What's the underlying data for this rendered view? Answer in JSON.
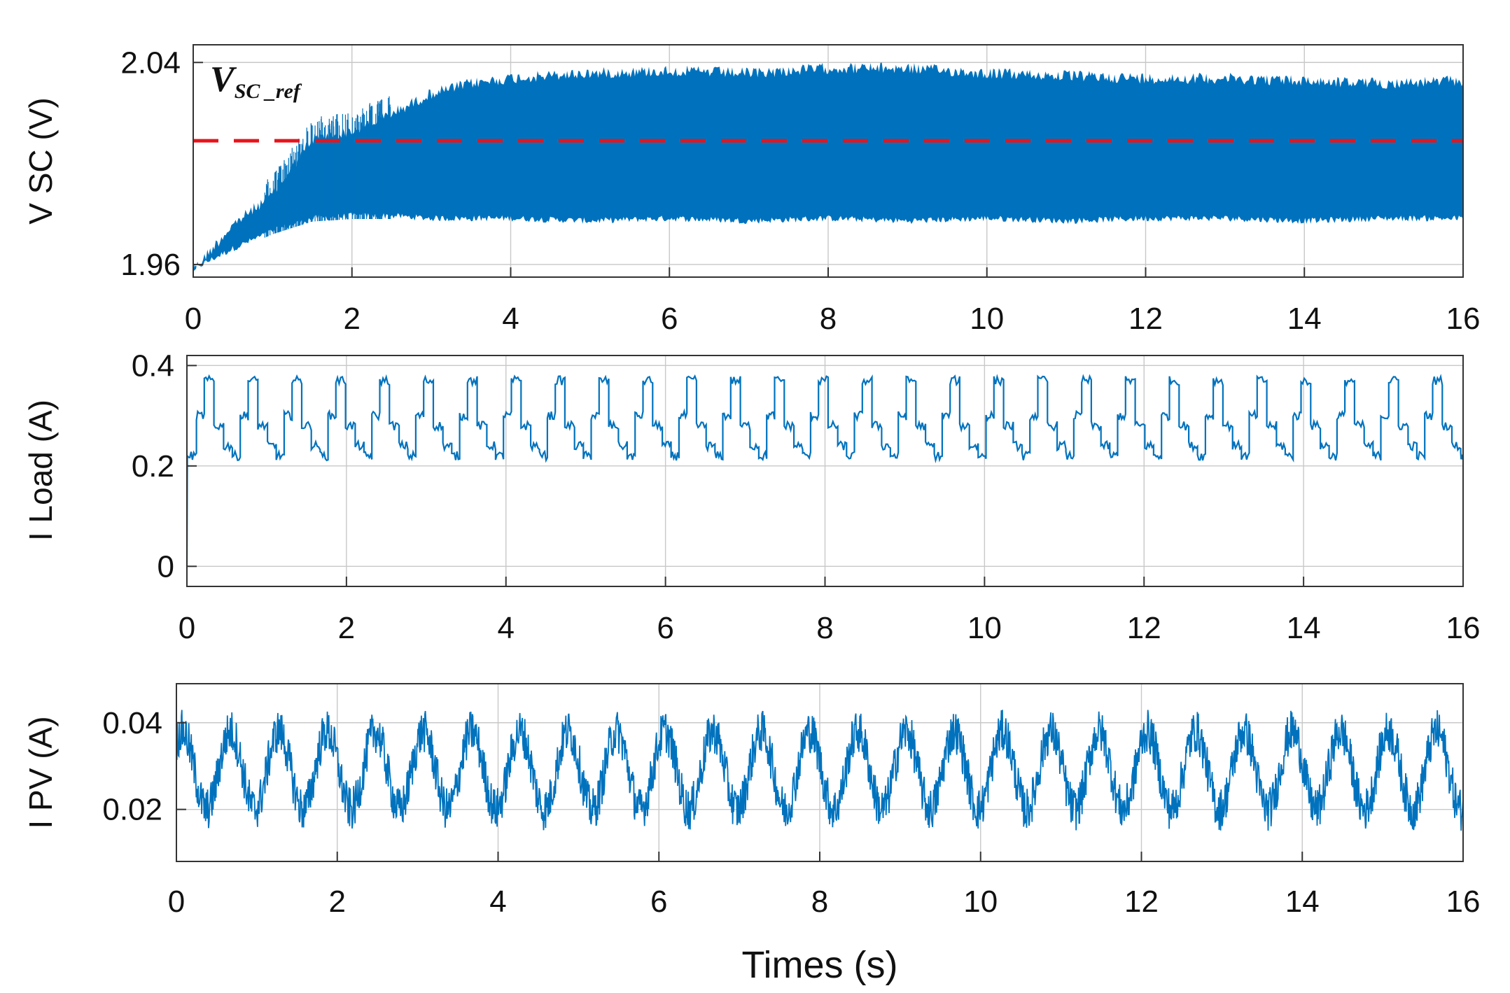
{
  "chart_data": [
    {
      "type": "line",
      "ylabel": "V SC (V)",
      "xlabel": "",
      "xlim": [
        0,
        16
      ],
      "ylim": [
        1.955,
        2.047
      ],
      "xticks": [
        "0",
        "2",
        "4",
        "6",
        "8",
        "10",
        "12",
        "14",
        "16"
      ],
      "yticks": [
        "1.96",
        "2.04"
      ],
      "grid": true,
      "color": "#0072BD",
      "series": [
        {
          "name": "",
          "x": [
            0,
            0.5,
            1,
            1.5,
            2,
            2.5,
            3,
            3.5,
            4,
            5,
            6,
            7,
            8,
            9,
            10,
            11,
            12,
            13,
            14,
            15,
            16
          ],
          "upper": [
            1.96,
            1.978,
            1.99,
            2.012,
            2.015,
            2.022,
            2.03,
            2.034,
            2.036,
            2.038,
            2.039,
            2.038,
            2.04,
            2.04,
            2.038,
            2.037,
            2.036,
            2.036,
            2.035,
            2.034,
            2.035
          ],
          "lower": [
            1.957,
            1.965,
            1.972,
            1.977,
            1.978,
            1.978,
            1.977,
            1.977,
            1.977,
            1.976,
            1.977,
            1.976,
            1.977,
            1.976,
            1.977,
            1.976,
            1.977,
            1.977,
            1.976,
            1.977,
            1.977
          ]
        }
      ],
      "reference": {
        "label_main": "V",
        "label_sub": "SC _ref",
        "value": 2.009,
        "color": "#e8141c",
        "style": "dashed"
      }
    },
    {
      "type": "line",
      "ylabel": "I Load (A)",
      "xlabel": "",
      "xlim": [
        0,
        16
      ],
      "ylim": [
        -0.04,
        0.42
      ],
      "xticks": [
        "0",
        "2",
        "4",
        "6",
        "8",
        "10",
        "12",
        "14",
        "16"
      ],
      "yticks": [
        "0",
        "0.2",
        "0.4"
      ],
      "grid": true,
      "color": "#0072BD",
      "series": [
        {
          "name": "",
          "period": 0.55,
          "levels": [
            0.22,
            0.3,
            0.37,
            0.28,
            0.24
          ],
          "x": [
            0,
            0.01,
            0.05,
            0.2,
            0.35,
            0.6,
            0.8,
            16
          ],
          "y": [
            0,
            0.22,
            0.23,
            0.3,
            0.37,
            0.22,
            0.37,
            0.22
          ]
        }
      ]
    },
    {
      "type": "line",
      "ylabel": "I PV (A)",
      "xlabel": "Times (s)",
      "xlim": [
        0,
        16
      ],
      "ylim": [
        0.008,
        0.049
      ],
      "xticks": [
        "0",
        "2",
        "4",
        "6",
        "8",
        "10",
        "12",
        "14",
        "16"
      ],
      "yticks": [
        "0.02",
        "0.04"
      ],
      "grid": true,
      "color": "#0072BD",
      "series": [
        {
          "name": "",
          "period": 0.6,
          "mean": 0.029,
          "amplitude": 0.009,
          "noise": 0.005,
          "min": 0.012,
          "max": 0.045
        }
      ]
    }
  ]
}
